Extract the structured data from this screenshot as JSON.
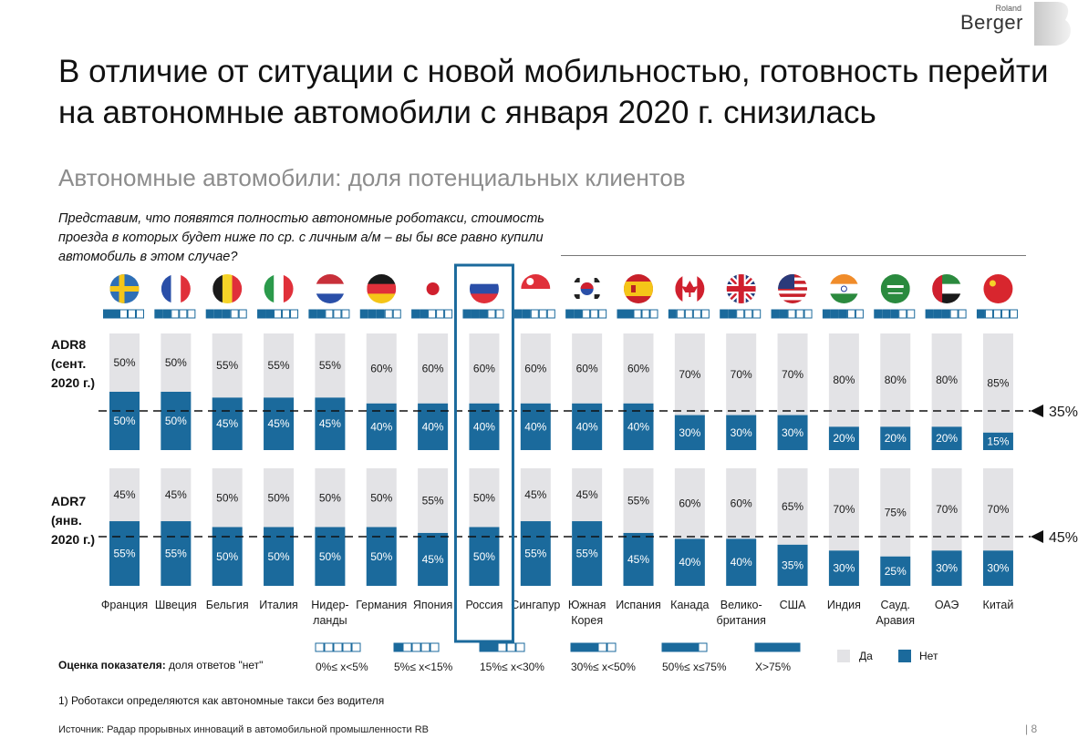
{
  "logo": {
    "small": "Roland",
    "big": "Berger"
  },
  "title": "В отличие от ситуации с новой мобильностью, готовность перейти на автономные автомобили с января 2020 г. снизилась",
  "subtitle": "Автономные автомобили: доля потенциальных клиентов",
  "question": "Представим, что появятся полностью автономные роботакси, стоимость проезда в которых будет ниже по ср. с личным а/м – вы бы все равно купили автомобиль в этом случае?",
  "row_labels": {
    "adr8": [
      "ADR8",
      "(сент.",
      "2020 г.)"
    ],
    "adr7": [
      "ADR7",
      "(янв.",
      "2020 г.)"
    ]
  },
  "colors": {
    "yes": "#e3e3e6",
    "no": "#1b6a9c",
    "highlight": "#1b6a9c",
    "text": "#1a1a1a"
  },
  "chart_data": [
    {
      "type": "bar",
      "stacked": true,
      "name": "ADR8 (сент. 2020 г.)",
      "categories": [
        "Франция",
        "Швеция",
        "Бельгия",
        "Италия",
        "Нидерланды",
        "Германия",
        "Япония",
        "Россия",
        "Сингапур",
        "Южная Корея",
        "Испания",
        "Канада",
        "Великобритания",
        "США",
        "Индия",
        "Сауд. Аравия",
        "ОАЭ",
        "Китай"
      ],
      "series": [
        {
          "name": "Да",
          "values": [
            50,
            50,
            55,
            55,
            55,
            60,
            60,
            60,
            60,
            60,
            60,
            70,
            70,
            70,
            80,
            80,
            80,
            85
          ]
        },
        {
          "name": "Нет",
          "values": [
            50,
            50,
            45,
            45,
            45,
            40,
            40,
            40,
            40,
            40,
            40,
            30,
            30,
            30,
            20,
            20,
            20,
            15
          ]
        }
      ],
      "reference_line": "35%",
      "ylim": [
        0,
        100
      ]
    },
    {
      "type": "bar",
      "stacked": true,
      "name": "ADR7 (янв. 2020 г.)",
      "categories": [
        "Франция",
        "Швеция",
        "Бельгия",
        "Италия",
        "Нидерланды",
        "Германия",
        "Япония",
        "Россия",
        "Сингапур",
        "Южная Корея",
        "Испания",
        "Канада",
        "Великобритания",
        "США",
        "Индия",
        "Сауд. Аравия",
        "ОАЭ",
        "Китай"
      ],
      "series": [
        {
          "name": "Да",
          "values": [
            45,
            45,
            50,
            50,
            50,
            50,
            55,
            50,
            45,
            45,
            55,
            60,
            60,
            65,
            70,
            75,
            70,
            70
          ]
        },
        {
          "name": "Нет",
          "values": [
            55,
            55,
            50,
            50,
            50,
            50,
            45,
            50,
            55,
            55,
            45,
            40,
            40,
            35,
            30,
            25,
            30,
            30
          ]
        }
      ],
      "reference_line": "45%",
      "ylim": [
        0,
        100
      ]
    }
  ],
  "category_labels": [
    [
      "Франция"
    ],
    [
      "Швеция"
    ],
    [
      "Бельгия"
    ],
    [
      "Италия"
    ],
    [
      "Нидер-",
      "ланды"
    ],
    [
      "Германия"
    ],
    [
      "Япония"
    ],
    [
      "Россия"
    ],
    [
      "Сингапур"
    ],
    [
      "Южная",
      "Корея"
    ],
    [
      "Испания"
    ],
    [
      "Канада"
    ],
    [
      "Велико-",
      "британия"
    ],
    [
      "США"
    ],
    [
      "Индия"
    ],
    [
      "Сауд.",
      "Аравия"
    ],
    [
      "ОАЭ"
    ],
    [
      "Китай"
    ]
  ],
  "highlighted_country": "Россия",
  "flags": [
    "sweden-flag",
    "france-flag",
    "belgium-flag",
    "italy-flag",
    "netherlands-flag",
    "germany-flag",
    "japan-flag",
    "russia-flag",
    "singapore-flag",
    "south-korea-flag",
    "spain-flag",
    "canada-flag",
    "uk-flag",
    "usa-flag",
    "india-flag",
    "saudi-arabia-flag",
    "uae-flag",
    "china-flag"
  ],
  "flag_scores": [
    2,
    2,
    3,
    2,
    2,
    3,
    2,
    3,
    2,
    2,
    2,
    1,
    2,
    2,
    3,
    3,
    3,
    1
  ],
  "legend": {
    "score_title": "Оценка показателя:",
    "score_desc": "доля ответов \"нет\"",
    "ranges": [
      "0%≤ x<5%",
      "5%≤ x<15%",
      "15%≤ x<30%",
      "30%≤ x<50%",
      "50%≤ x≤75%",
      "X>75%"
    ],
    "yes": "Да",
    "no": "Нет"
  },
  "footnote": "1) Роботакси определяются как автономные такси без водителя",
  "source": "Источник: Радар прорывных инноваций в автомобильной промышленности RB",
  "page_number": "| 8"
}
